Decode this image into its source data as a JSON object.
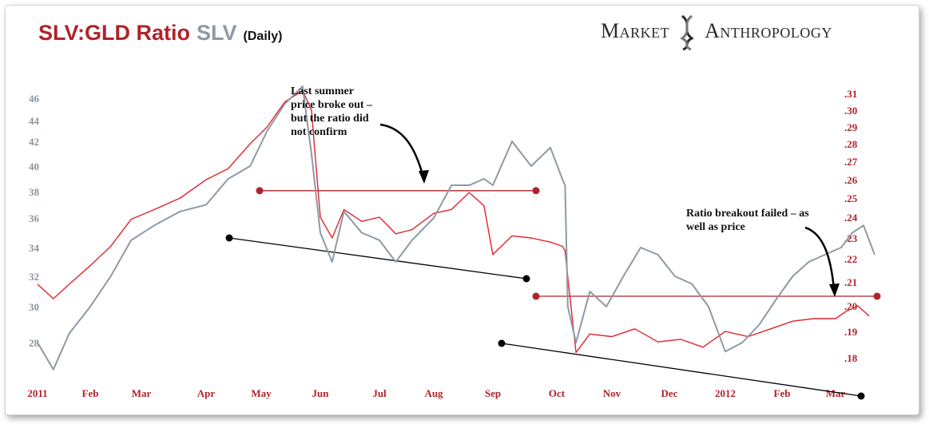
{
  "header": {
    "ratio_title": "SLV:GLD Ratio",
    "price_title": "SLV",
    "period": "(Daily)",
    "brand_left": "Market",
    "brand_right": "Anthropology"
  },
  "colors": {
    "ratio": "#e3232c",
    "price": "#8c9aa5",
    "accent": "#b0232a",
    "trend": "#000000"
  },
  "chart_data": {
    "type": "line",
    "x_labels": [
      "2011",
      "Feb",
      "Mar",
      "Apr",
      "May",
      "Jun",
      "Jul",
      "Aug",
      "Sep",
      "Oct",
      "Nov",
      "Dec",
      "2012",
      "Feb",
      "Mar"
    ],
    "y_left_ticks": [
      "46",
      "44",
      "42",
      "40",
      "38",
      "36",
      "34",
      "32",
      "30",
      "28"
    ],
    "y_right_ticks": [
      ".31",
      ".30",
      ".29",
      ".28",
      ".27",
      ".26",
      ".25",
      ".24",
      ".23",
      ".22",
      ".21",
      ".20",
      ".19",
      ".18"
    ],
    "series": [
      {
        "name": "SLV:GLD Ratio",
        "axis": "right",
        "x": [
          0,
          0.3,
          0.6,
          1.0,
          1.4,
          1.8,
          2.2,
          2.6,
          3.0,
          3.4,
          3.8,
          4.1,
          4.4,
          4.7,
          4.85,
          5.0,
          5.2,
          5.4,
          5.7,
          6.0,
          6.3,
          6.6,
          7.0,
          7.3,
          7.6,
          7.85,
          8.0,
          8.3,
          8.6,
          8.9,
          9.1,
          9.15,
          9.2,
          9.35,
          9.6,
          10.0,
          10.4,
          10.8,
          11.2,
          11.6,
          12.0,
          12.4,
          12.8,
          13.2,
          13.6,
          14.0,
          14.2,
          14.4,
          14.6
        ],
        "y": [
          0.209,
          0.203,
          0.209,
          0.217,
          0.226,
          0.239,
          0.244,
          0.25,
          0.26,
          0.266,
          0.28,
          0.29,
          0.305,
          0.312,
          0.3,
          0.24,
          0.23,
          0.244,
          0.238,
          0.24,
          0.232,
          0.234,
          0.242,
          0.244,
          0.253,
          0.246,
          0.222,
          0.231,
          0.23,
          0.228,
          0.226,
          0.224,
          0.212,
          0.182,
          0.189,
          0.188,
          0.191,
          0.186,
          0.187,
          0.184,
          0.19,
          0.188,
          0.191,
          0.194,
          0.195,
          0.195,
          0.198,
          0.2,
          0.196
        ]
      },
      {
        "name": "SLV",
        "axis": "left",
        "x": [
          0,
          0.3,
          0.6,
          1.0,
          1.4,
          1.8,
          2.2,
          2.6,
          3.0,
          3.4,
          3.8,
          4.1,
          4.4,
          4.7,
          4.85,
          5.0,
          5.2,
          5.4,
          5.7,
          6.0,
          6.3,
          6.6,
          7.0,
          7.3,
          7.6,
          7.85,
          8.0,
          8.3,
          8.6,
          8.9,
          9.1,
          9.15,
          9.2,
          9.35,
          9.6,
          9.9,
          10.2,
          10.5,
          10.8,
          11.1,
          11.4,
          11.7,
          12.0,
          12.3,
          12.6,
          12.9,
          13.2,
          13.5,
          13.8,
          14.1,
          14.3,
          14.5,
          14.7
        ],
        "y": [
          28.0,
          26.5,
          28.5,
          30.0,
          32.0,
          34.5,
          35.5,
          36.5,
          37.0,
          39.0,
          40.0,
          43.0,
          45.5,
          47.0,
          41.0,
          35.0,
          33.0,
          36.5,
          35.0,
          34.5,
          33.0,
          34.5,
          36.0,
          38.5,
          38.5,
          39.0,
          38.5,
          42.0,
          40.0,
          41.5,
          39.0,
          38.5,
          30.0,
          28.0,
          31.0,
          30.0,
          32.0,
          34.0,
          33.5,
          32.0,
          31.5,
          30.0,
          27.5,
          28.0,
          29.0,
          30.5,
          32.0,
          33.0,
          33.5,
          34.0,
          35.0,
          35.5,
          33.5
        ]
      }
    ],
    "horizontal_levels": [
      {
        "axis": "right",
        "value": 0.254
      },
      {
        "axis": "right",
        "value": 0.204
      }
    ],
    "annotations": [
      {
        "lines": [
          "Last summer",
          "price broke out –",
          "but the ratio did",
          "not confirm"
        ]
      },
      {
        "lines": [
          "Ratio breakout failed – as",
          "well as price"
        ]
      }
    ],
    "grid": false,
    "legend": "none"
  }
}
